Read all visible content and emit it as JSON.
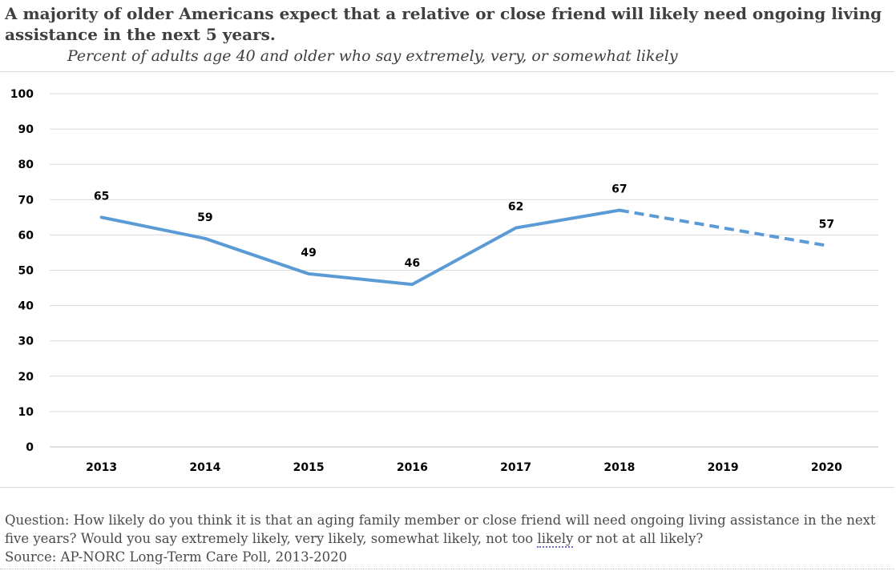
{
  "header": {
    "title": "A majority of older Americans expect that a relative or close friend will likely need ongoing living assistance in the next 5 years.",
    "subtitle": "Percent of adults age 40 and older who say extremely, very, or somewhat likely"
  },
  "chart_data": {
    "type": "line",
    "categories": [
      "2013",
      "2014",
      "2015",
      "2016",
      "2017",
      "2018",
      "2019",
      "2020"
    ],
    "series": [
      {
        "values": [
          65,
          59,
          49,
          46,
          62,
          67,
          null,
          57
        ],
        "color": "#5b9bd5",
        "solid_through": "2018",
        "dashed_segment": [
          "2018",
          "2020"
        ]
      }
    ],
    "data_labels": [
      "65",
      "59",
      "49",
      "46",
      "62",
      "67",
      "",
      "57"
    ],
    "y_ticks": [
      0,
      10,
      20,
      30,
      40,
      50,
      60,
      70,
      80,
      90,
      100
    ],
    "ylim": [
      0,
      100
    ],
    "grid": "horizontal",
    "legend": "none"
  },
  "footer": {
    "question_before": "Question: How likely do you think it is that an aging family member or close friend will need ongoing living assistance in the next five years? Would you say extremely likely, very likely, somewhat likely, not too ",
    "question_marked": "likely",
    "question_after": " or not at all likely?",
    "source": "Source: AP-NORC Long-Term Care Poll, 2013-2020"
  }
}
